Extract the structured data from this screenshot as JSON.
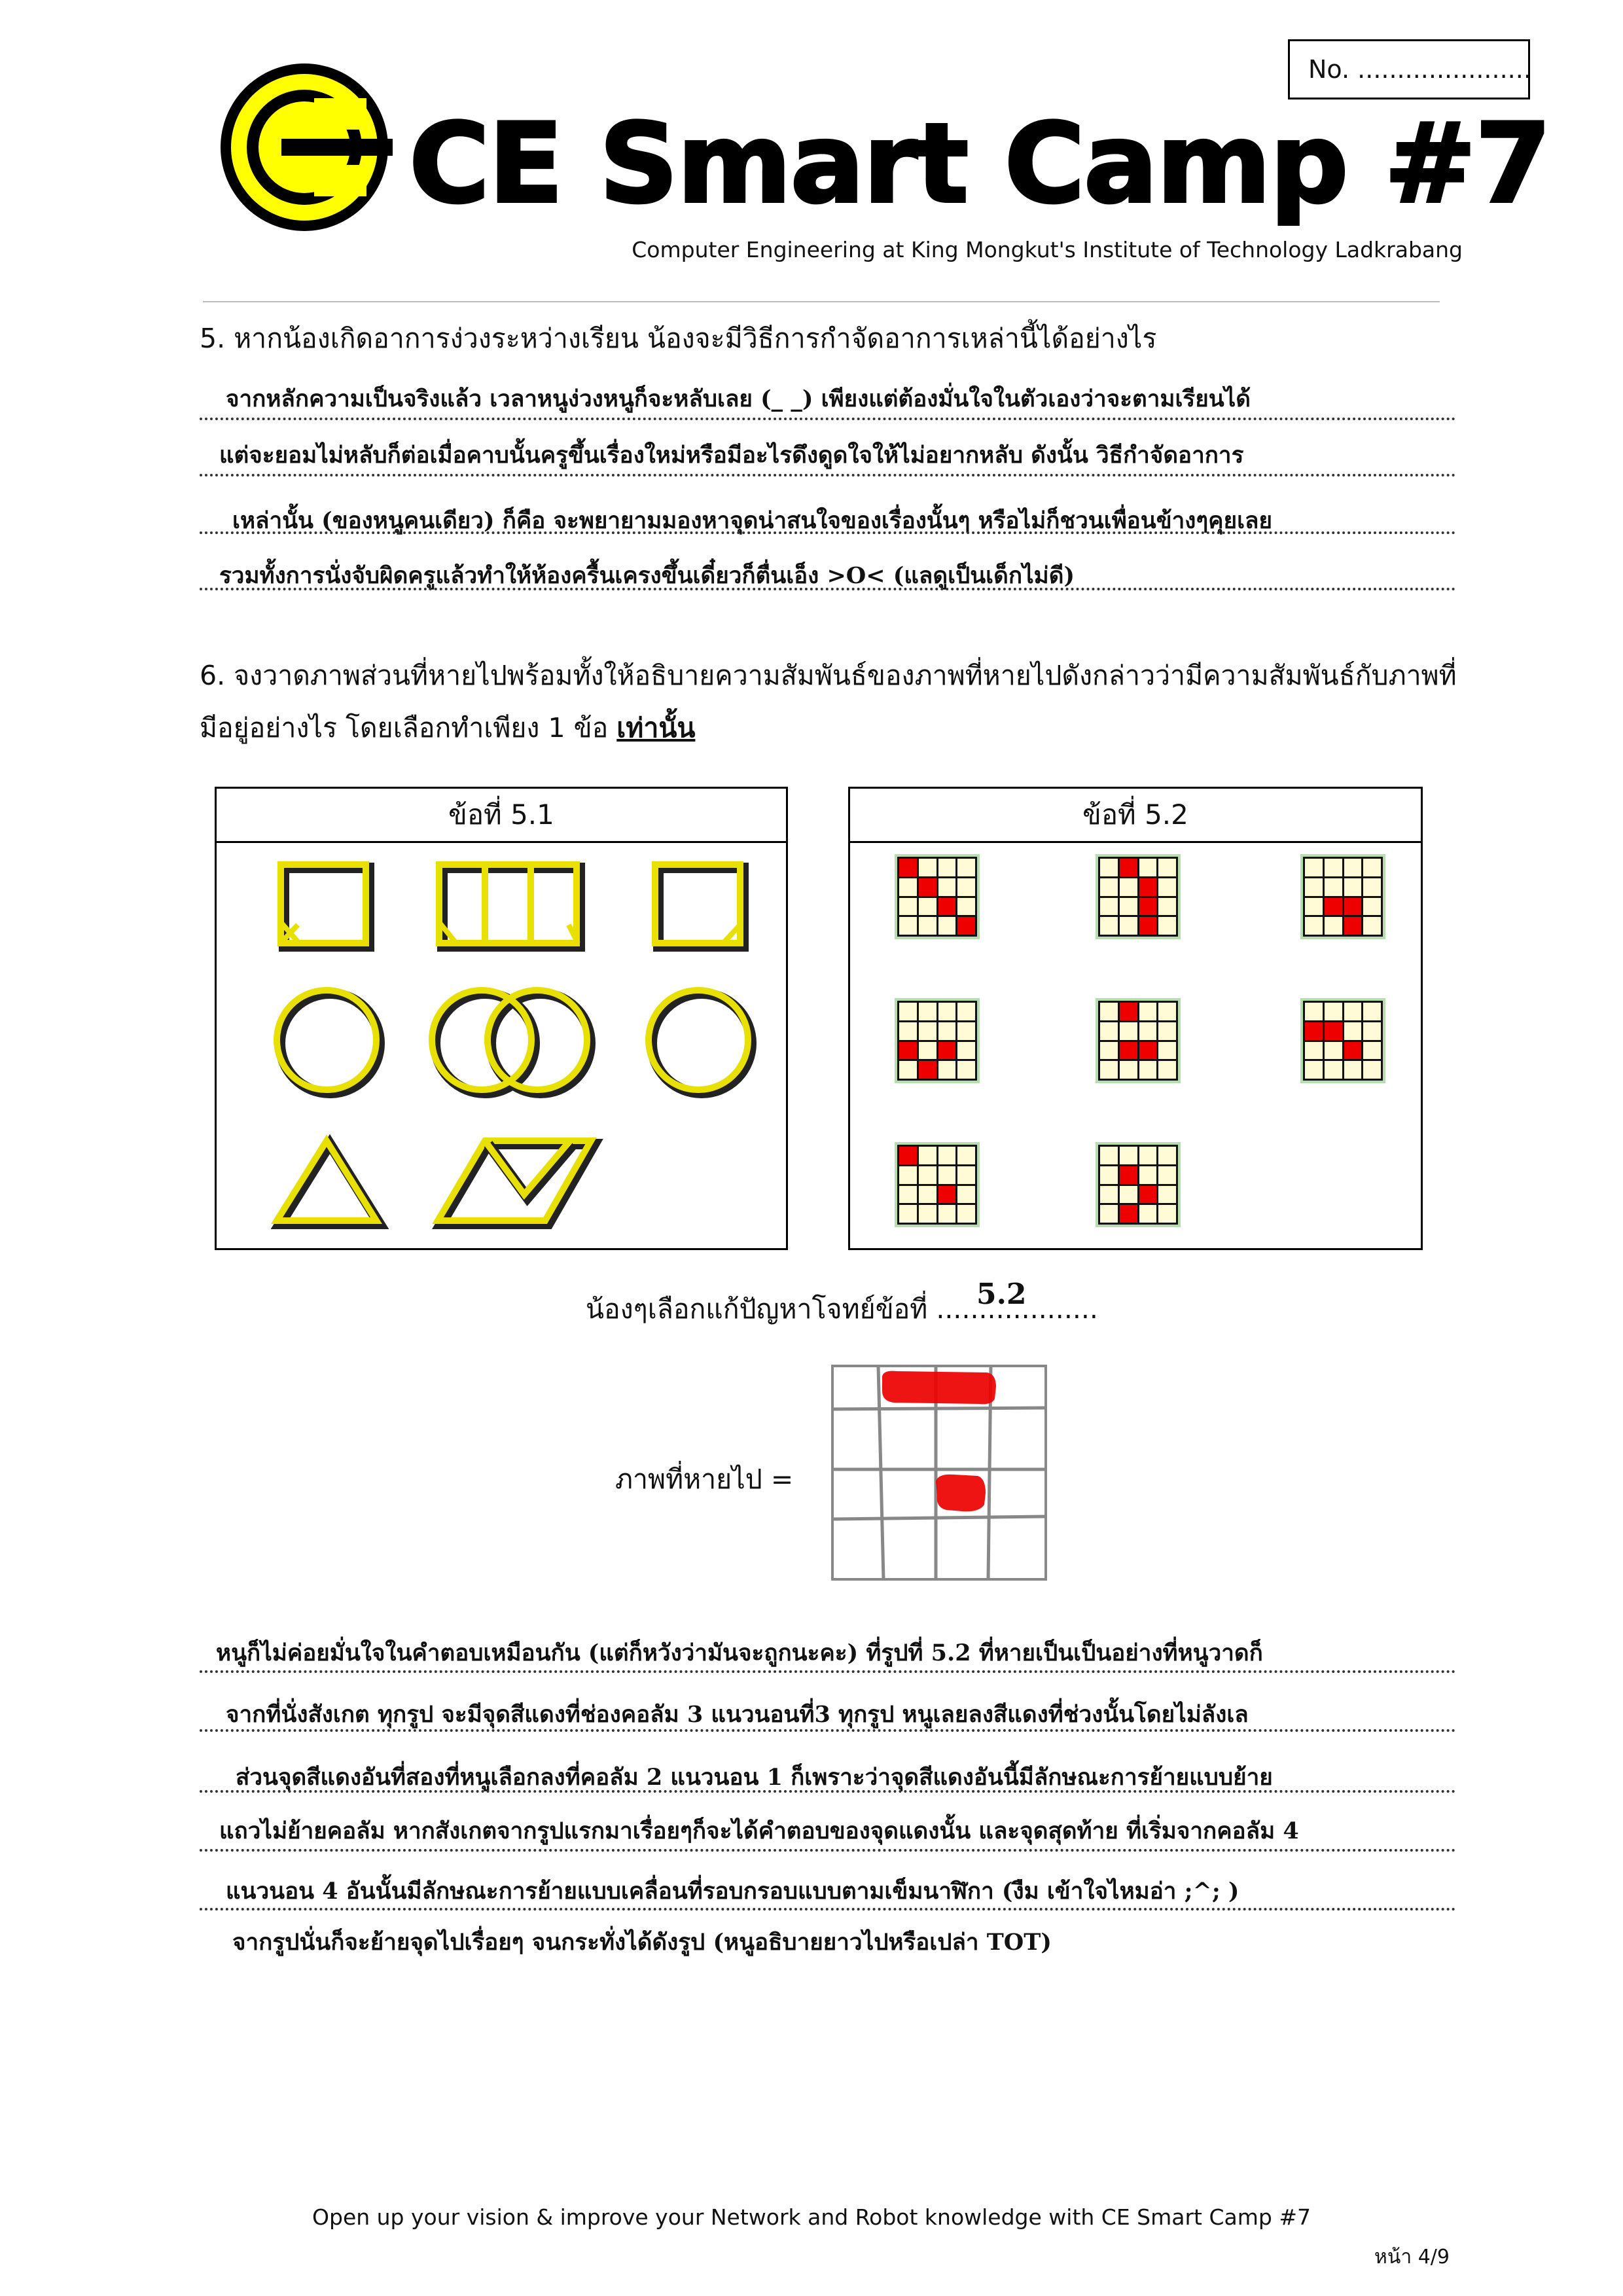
{
  "header": {
    "title": "CE Smart Camp #7",
    "no_label": "No.  ......................",
    "subtitle": "Computer Engineering at King Mongkut's Institute of Technology Ladkrabang"
  },
  "q5": {
    "question": "5. หากน้องเกิดอาการง่วงระหว่างเรียน น้องจะมีวิธีการกำจัดอาการเหล่านี้ได้อย่างไร",
    "answer_lines": [
      "จากหลักความเป็นจริงแล้ว เวลาหนูง่วงหนูก็จะหลับเลย (_ _) เพียงแต่ต้องมั่นใจในตัวเองว่าจะตามเรียนได้",
      "แต่จะยอมไม่หลับก็ต่อเมื่อคาบนั้นครูขึ้นเรื่องใหม่หรือมีอะไรดึงดูดใจให้ไม่อยากหลับ ดังนั้น วิธีกำจัดอาการ",
      "เหล่านั้น (ของหนูคนเดียว) ก็คือ จะพยายามมองหาจุดน่าสนใจของเรื่องนั้นๆ หรือไม่ก็ชวนเพื่อนข้างๆคุยเลย",
      "รวมทั้งการนั่งจับผิดครูแล้วทำให้ห้องครื้นเครงขึ้นเดี๋ยวก็ตื่นเอ็ง >O< (แลดูเป็นเด็กไม่ดี)"
    ]
  },
  "q6": {
    "question_line1": "6. จงวาดภาพส่วนที่หายไปพร้อมทั้งให้อธิบายความสัมพันธ์ของภาพที่หายไปดังกล่าวว่ามีความสัมพันธ์กับภาพที่",
    "question_line2": "มีอยู่อย่างไร โดยเลือกทำเพียง 1 ข้อ",
    "question_emph": "เท่านั้น",
    "panel1_title": "ข้อที่ 5.1",
    "panel2_title": "ข้อที่ 5.2",
    "choice_label": "น้องๆเลือกแก้ปัญหาโจทย์ข้อที่ ...................",
    "choice_value": "5.2",
    "missing_label": "ภาพที่หายไป =",
    "explanation_lines": [
      "หนูก็ไม่ค่อยมั่นใจในคำตอบเหมือนกัน (แต่ก็หวังว่ามันจะถูกนะคะ) ที่รูปที่ 5.2 ที่หายเป็นเป็นอย่างที่หนูวาดก็",
      "จากที่นั่งสังเกต ทุกรูป จะมีจุดสีแดงที่ช่องคอลัม 3 แนวนอนที่3 ทุกรูป หนูเลยลงสีแดงที่ช่วงนั้นโดยไม่ลังเล",
      "ส่วนจุดสีแดงอันที่สองที่หนูเลือกลงที่คอลัม 2 แนวนอน 1 ก็เพราะว่าจุดสีแดงอันนี้มีลักษณะการย้ายแบบย้าย",
      "แถวไม่ย้ายคอลัม หากสังเกตจากรูปแรกมาเรื่อยๆก็จะได้คำตอบของจุดแดงนั้น และจุดสุดท้าย ที่เริ่มจากคอลัม 4",
      "แนวนอน 4 อันนั้นมีลักษณะการย้ายแบบเคลื่อนที่รอบกรอบแบบตามเข็มนาฬิกา (งืม เข้าใจไหมอ่า ;^; )",
      "จากรูปนั่นก็จะย้ายจุดไปเรื่อยๆ จนกระทั่งได้ดังรูป (หนูอธิบายยาวไปหรือเปล่า TOT)"
    ]
  },
  "footer": {
    "text": "Open up your vision & improve your Network and Robot knowledge with CE Smart Camp #7",
    "page": "หน้า 4/9"
  },
  "colors": {
    "logo_yellow": "#ffff00",
    "shape_yellow": "#e8e000",
    "cell_red": "#ee0000",
    "cell_cream": "#fffbd6"
  }
}
